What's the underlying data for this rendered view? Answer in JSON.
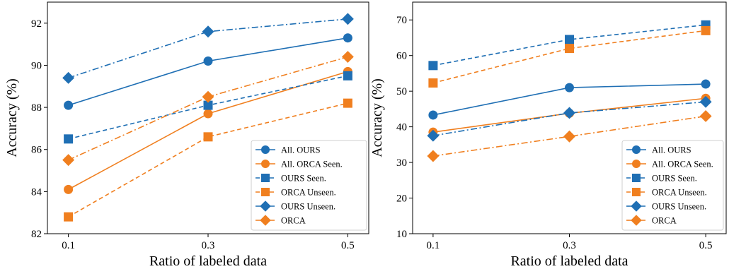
{
  "chart_data": [
    {
      "type": "line",
      "x": [
        0.1,
        0.3,
        0.5
      ],
      "xticks": [
        "0.1",
        "0.3",
        "0.5"
      ],
      "xlabel": "Ratio of labeled data",
      "ylabel": "Accuracy (%)",
      "xlim": [
        0.07,
        0.53
      ],
      "ylim": [
        82,
        93
      ],
      "yticks": [
        82,
        84,
        86,
        88,
        90,
        92
      ],
      "grid": false,
      "legend_position": "lower-right",
      "series": [
        {
          "name": "All. OURS",
          "values": [
            88.1,
            90.2,
            91.3
          ],
          "color": "#1f6fb4",
          "marker": "circle",
          "linestyle": "solid"
        },
        {
          "name": "All. ORCA Seen.",
          "values": [
            84.1,
            87.7,
            89.7
          ],
          "color": "#f07f1f",
          "marker": "circle",
          "linestyle": "solid"
        },
        {
          "name": "OURS Seen.",
          "values": [
            86.5,
            88.1,
            89.5
          ],
          "color": "#1f6fb4",
          "marker": "square",
          "linestyle": "dashed"
        },
        {
          "name": "ORCA Unseen.",
          "values": [
            82.8,
            86.6,
            88.2
          ],
          "color": "#f07f1f",
          "marker": "square",
          "linestyle": "dashed"
        },
        {
          "name": "OURS Unseen.",
          "values": [
            89.4,
            91.6,
            92.2
          ],
          "color": "#1f6fb4",
          "marker": "diamond",
          "linestyle": "dashdot"
        },
        {
          "name": "ORCA",
          "values": [
            85.5,
            88.5,
            90.4
          ],
          "color": "#f07f1f",
          "marker": "diamond",
          "linestyle": "dashdot"
        }
      ]
    },
    {
      "type": "line",
      "x": [
        0.1,
        0.3,
        0.5
      ],
      "xticks": [
        "0.1",
        "0.3",
        "0.5"
      ],
      "xlabel": "Ratio of labeled data",
      "ylabel": "Accuracy (%)",
      "xlim": [
        0.07,
        0.53
      ],
      "ylim": [
        10,
        75
      ],
      "yticks": [
        10,
        20,
        30,
        40,
        50,
        60,
        70
      ],
      "grid": false,
      "legend_position": "lower-right",
      "series": [
        {
          "name": "All. OURS",
          "values": [
            43.3,
            51.0,
            52.0
          ],
          "color": "#1f6fb4",
          "marker": "circle",
          "linestyle": "solid"
        },
        {
          "name": "All. ORCA Seen.",
          "values": [
            38.5,
            43.8,
            48.0
          ],
          "color": "#f07f1f",
          "marker": "circle",
          "linestyle": "solid"
        },
        {
          "name": "OURS Seen.",
          "values": [
            57.2,
            64.5,
            68.6
          ],
          "color": "#1f6fb4",
          "marker": "square",
          "linestyle": "dashed"
        },
        {
          "name": "ORCA Unseen.",
          "values": [
            52.3,
            62.0,
            67.0
          ],
          "color": "#f07f1f",
          "marker": "square",
          "linestyle": "dashed"
        },
        {
          "name": "OURS Unseen.",
          "values": [
            37.5,
            43.9,
            47.0
          ],
          "color": "#1f6fb4",
          "marker": "diamond",
          "linestyle": "dashdot"
        },
        {
          "name": "ORCA",
          "values": [
            31.8,
            37.3,
            43.0
          ],
          "color": "#f07f1f",
          "marker": "diamond",
          "linestyle": "dashdot"
        }
      ]
    }
  ]
}
